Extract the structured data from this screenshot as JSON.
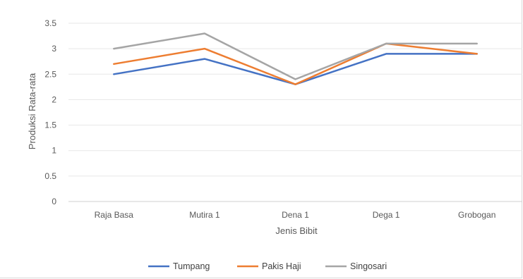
{
  "chart_data": {
    "type": "line",
    "categories": [
      "Raja Basa",
      "Mutira 1",
      "Dena 1",
      "Dega 1",
      "Grobogan"
    ],
    "series": [
      {
        "name": "Tumpang",
        "color": "#4472c4",
        "values": [
          2.5,
          2.8,
          2.3,
          2.9,
          2.9
        ]
      },
      {
        "name": "Pakis Haji",
        "color": "#ed7d31",
        "values": [
          2.7,
          3.0,
          2.3,
          3.1,
          2.9
        ]
      },
      {
        "name": "Singosari",
        "color": "#a5a5a5",
        "values": [
          3.0,
          3.3,
          2.4,
          3.1,
          3.1
        ]
      }
    ],
    "xlabel": "Jenis Bibit",
    "ylabel": "Produksi Rata-rata",
    "ylim": [
      0,
      3.5
    ],
    "yticks": [
      0,
      0.5,
      1,
      1.5,
      2,
      2.5,
      3,
      3.5
    ],
    "ytick_labels": [
      "0",
      "0.5",
      "1",
      "1.5",
      "2",
      "2.5",
      "3",
      "3.5"
    ],
    "grid": true,
    "legend_position": "bottom"
  }
}
